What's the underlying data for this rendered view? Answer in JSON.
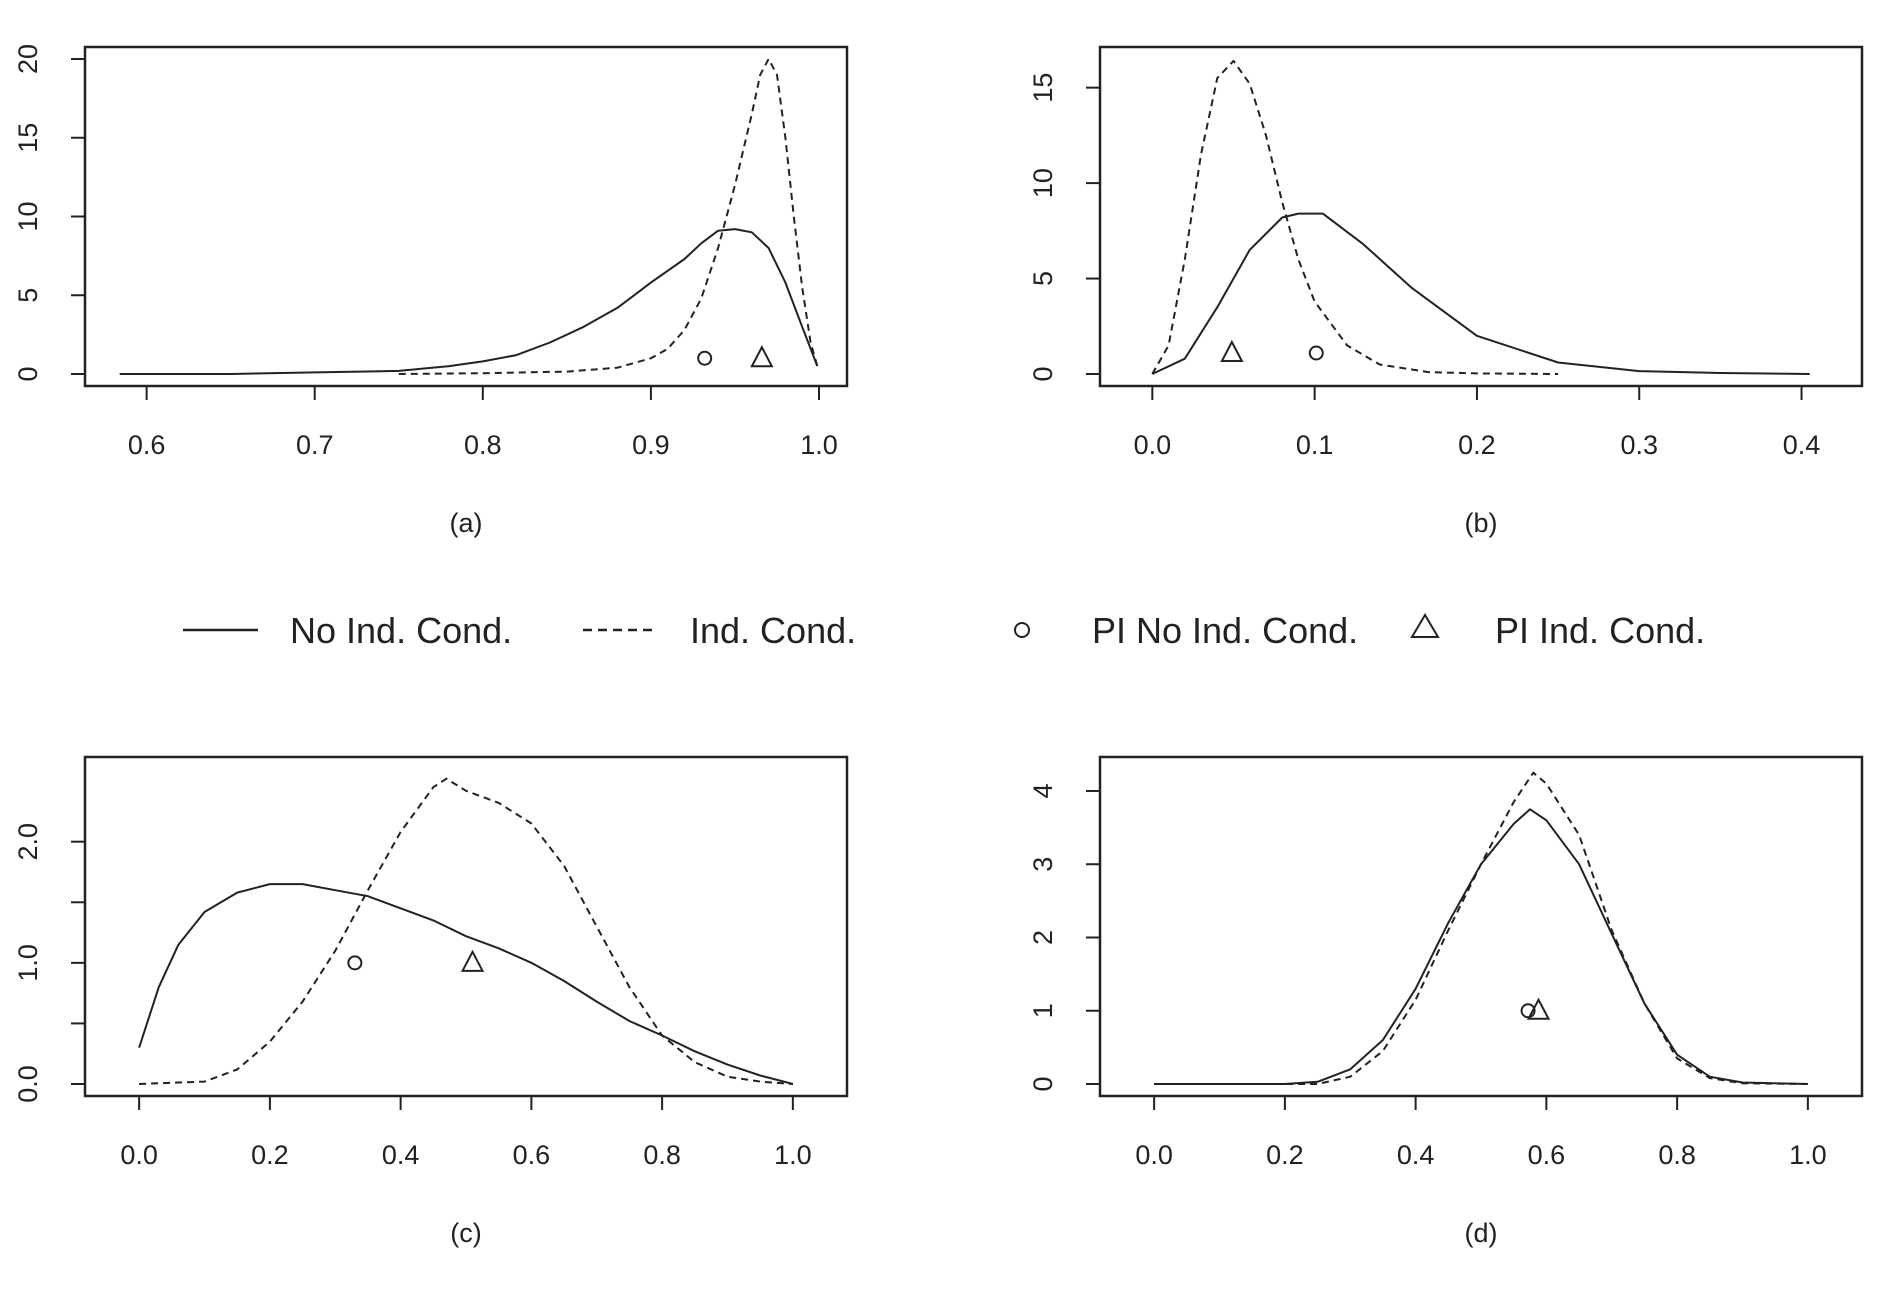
{
  "legend": {
    "items": [
      {
        "label": "No Ind. Cond.",
        "symbol": "solid-line"
      },
      {
        "label": "Ind. Cond.",
        "symbol": "dashed-line"
      },
      {
        "label": "PI No Ind. Cond.",
        "symbol": "circle"
      },
      {
        "label": "PI Ind. Cond.",
        "symbol": "triangle"
      }
    ]
  },
  "chart_data": [
    {
      "type": "line",
      "caption": "(a)",
      "xlim": [
        0.58,
        1.0
      ],
      "ylim": [
        0,
        20
      ],
      "xticks": [
        0.6,
        0.7,
        0.8,
        0.9,
        1.0
      ],
      "xtick_labels": [
        "0.6",
        "0.7",
        "0.8",
        "0.9",
        "1.0"
      ],
      "yticks": [
        0,
        5,
        10,
        15,
        20
      ],
      "ytick_labels": [
        "0",
        "5",
        "10",
        "15",
        "20"
      ],
      "series": [
        {
          "style": "solid",
          "x": [
            0.584,
            0.65,
            0.7,
            0.75,
            0.78,
            0.8,
            0.82,
            0.84,
            0.86,
            0.88,
            0.9,
            0.92,
            0.93,
            0.94,
            0.95,
            0.96,
            0.97,
            0.98,
            0.99,
            0.999
          ],
          "y": [
            0,
            0,
            0.1,
            0.2,
            0.5,
            0.8,
            1.2,
            2.0,
            3.0,
            4.2,
            5.8,
            7.3,
            8.3,
            9.1,
            9.2,
            9.0,
            8.0,
            5.8,
            3.0,
            0.5
          ]
        },
        {
          "style": "dashed",
          "x": [
            0.75,
            0.8,
            0.85,
            0.88,
            0.9,
            0.91,
            0.92,
            0.93,
            0.94,
            0.95,
            0.96,
            0.965,
            0.97,
            0.975,
            0.98,
            0.985,
            0.99,
            0.995,
            0.999
          ],
          "y": [
            0,
            0.05,
            0.15,
            0.4,
            1.0,
            1.6,
            2.8,
            4.8,
            8.0,
            12.0,
            16.5,
            19.0,
            20.0,
            19.0,
            15.0,
            10.0,
            5.5,
            2.0,
            0.5
          ]
        }
      ],
      "points": [
        {
          "marker": "circle",
          "x": 0.932,
          "y": 1.0
        },
        {
          "marker": "triangle",
          "x": 0.966,
          "y": 1.0
        }
      ]
    },
    {
      "type": "line",
      "caption": "(b)",
      "xlim": [
        -0.015,
        0.42
      ],
      "ylim": [
        0,
        16.5
      ],
      "xticks": [
        0.0,
        0.1,
        0.2,
        0.3,
        0.4
      ],
      "xtick_labels": [
        "0.0",
        "0.1",
        "0.2",
        "0.3",
        "0.4"
      ],
      "yticks": [
        0,
        5,
        10,
        15
      ],
      "ytick_labels": [
        "0",
        "5",
        "10",
        "15"
      ],
      "series": [
        {
          "style": "solid",
          "x": [
            0.0,
            0.02,
            0.04,
            0.06,
            0.08,
            0.09,
            0.105,
            0.13,
            0.16,
            0.2,
            0.25,
            0.3,
            0.35,
            0.405
          ],
          "y": [
            0,
            0.8,
            3.5,
            6.5,
            8.2,
            8.4,
            8.4,
            6.8,
            4.5,
            2.0,
            0.6,
            0.15,
            0.05,
            0
          ]
        },
        {
          "style": "dashed",
          "x": [
            0.0,
            0.01,
            0.02,
            0.03,
            0.04,
            0.05,
            0.06,
            0.07,
            0.08,
            0.09,
            0.1,
            0.12,
            0.14,
            0.17,
            0.2,
            0.25
          ],
          "y": [
            0,
            1.5,
            6.0,
            11.5,
            15.5,
            16.4,
            15.2,
            12.5,
            9.0,
            6.0,
            3.8,
            1.5,
            0.5,
            0.1,
            0.03,
            0
          ]
        }
      ],
      "points": [
        {
          "marker": "circle",
          "x": 0.101,
          "y": 1.1
        },
        {
          "marker": "triangle",
          "x": 0.049,
          "y": 1.1
        }
      ]
    },
    {
      "type": "line",
      "caption": "(c)",
      "xlim": [
        -0.04,
        1.04
      ],
      "ylim": [
        0,
        2.6
      ],
      "xticks": [
        0.0,
        0.2,
        0.4,
        0.6,
        0.8,
        1.0
      ],
      "xtick_labels": [
        "0.0",
        "0.2",
        "0.4",
        "0.6",
        "0.8",
        "1.0"
      ],
      "yticks": [
        0.0,
        0.5,
        1.0,
        1.5,
        2.0
      ],
      "ytick_labels": [
        "0.0",
        "",
        "1.0",
        "",
        "2.0"
      ],
      "series": [
        {
          "style": "solid",
          "x": [
            0.0,
            0.03,
            0.06,
            0.1,
            0.15,
            0.2,
            0.25,
            0.3,
            0.35,
            0.4,
            0.45,
            0.5,
            0.55,
            0.6,
            0.65,
            0.7,
            0.75,
            0.8,
            0.85,
            0.9,
            0.95,
            1.0
          ],
          "y": [
            0.3,
            0.8,
            1.15,
            1.42,
            1.58,
            1.65,
            1.65,
            1.6,
            1.55,
            1.45,
            1.35,
            1.22,
            1.12,
            1.0,
            0.85,
            0.68,
            0.52,
            0.4,
            0.27,
            0.16,
            0.07,
            0
          ]
        },
        {
          "style": "dashed",
          "x": [
            0.0,
            0.1,
            0.15,
            0.2,
            0.25,
            0.3,
            0.35,
            0.4,
            0.45,
            0.47,
            0.5,
            0.55,
            0.6,
            0.65,
            0.7,
            0.75,
            0.8,
            0.85,
            0.9,
            0.95,
            1.0
          ],
          "y": [
            0,
            0.02,
            0.12,
            0.35,
            0.68,
            1.1,
            1.6,
            2.08,
            2.45,
            2.52,
            2.42,
            2.32,
            2.15,
            1.8,
            1.3,
            0.8,
            0.4,
            0.18,
            0.06,
            0.02,
            0
          ]
        }
      ],
      "points": [
        {
          "marker": "circle",
          "x": 0.33,
          "y": 1.0
        },
        {
          "marker": "triangle",
          "x": 0.51,
          "y": 1.0
        }
      ]
    },
    {
      "type": "line",
      "caption": "(d)",
      "xlim": [
        -0.04,
        1.04
      ],
      "ylim": [
        0,
        4.3
      ],
      "xticks": [
        0.0,
        0.2,
        0.4,
        0.6,
        0.8,
        1.0
      ],
      "xtick_labels": [
        "0.0",
        "0.2",
        "0.4",
        "0.6",
        "0.8",
        "1.0"
      ],
      "yticks": [
        0,
        1,
        2,
        3,
        4
      ],
      "ytick_labels": [
        "0",
        "1",
        "2",
        "3",
        "4"
      ],
      "series": [
        {
          "style": "solid",
          "x": [
            0.0,
            0.2,
            0.25,
            0.3,
            0.35,
            0.4,
            0.45,
            0.5,
            0.55,
            0.575,
            0.6,
            0.65,
            0.7,
            0.75,
            0.8,
            0.85,
            0.9,
            1.0
          ],
          "y": [
            0,
            0,
            0.03,
            0.2,
            0.6,
            1.3,
            2.2,
            3.0,
            3.55,
            3.75,
            3.6,
            3.0,
            2.05,
            1.1,
            0.4,
            0.1,
            0.02,
            0
          ]
        },
        {
          "style": "dashed",
          "x": [
            0.0,
            0.25,
            0.3,
            0.35,
            0.4,
            0.45,
            0.5,
            0.55,
            0.58,
            0.6,
            0.65,
            0.7,
            0.75,
            0.8,
            0.85,
            0.9,
            1.0
          ],
          "y": [
            0,
            0,
            0.1,
            0.45,
            1.15,
            2.1,
            3.0,
            3.85,
            4.25,
            4.1,
            3.4,
            2.1,
            1.1,
            0.35,
            0.08,
            0.01,
            0
          ]
        }
      ],
      "points": [
        {
          "marker": "circle",
          "x": 0.572,
          "y": 1.0
        },
        {
          "marker": "triangle",
          "x": 0.588,
          "y": 1.0
        }
      ]
    }
  ]
}
